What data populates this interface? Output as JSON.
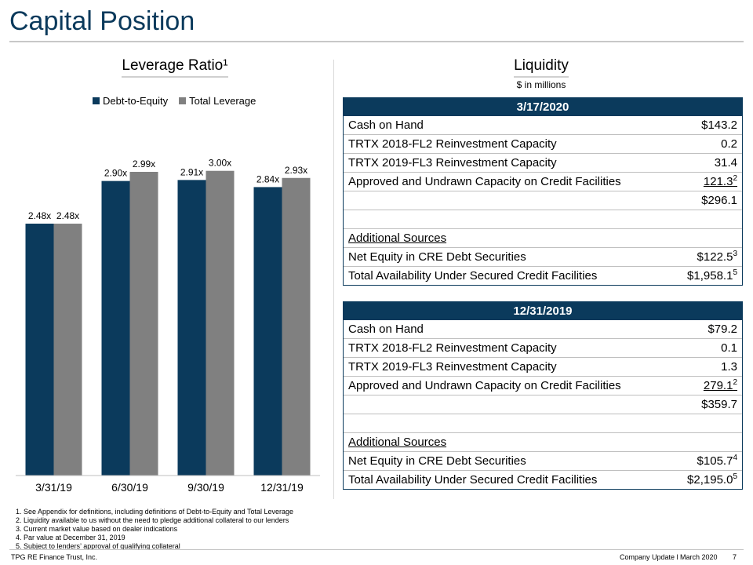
{
  "page": {
    "title": "Capital Position",
    "leverage_title": "Leverage Ratio¹",
    "liquidity_title": "Liquidity",
    "liquidity_subtitle": "$ in millions"
  },
  "chart_data": {
    "type": "bar",
    "title": "Leverage Ratio¹",
    "categories": [
      "3/31/19",
      "6/30/19",
      "9/30/19",
      "12/31/19"
    ],
    "series": [
      {
        "name": "Debt-to-Equity",
        "values": [
          2.48,
          2.9,
          2.91,
          2.84
        ],
        "labels": [
          "2.48x",
          "2.90x",
          "2.91x",
          "2.84x"
        ],
        "color": "#0b3a5c"
      },
      {
        "name": "Total Leverage",
        "values": [
          2.48,
          2.99,
          3.0,
          2.93
        ],
        "labels": [
          "2.48x",
          "2.99x",
          "3.00x",
          "2.93x"
        ],
        "color": "#808080"
      }
    ],
    "ylim": [
      0,
      3.5
    ],
    "legend": "top",
    "grid": false
  },
  "tables": [
    {
      "header": "3/17/2020",
      "rows": [
        {
          "label": "Cash on Hand",
          "value": "$143.2",
          "sup": ""
        },
        {
          "label": "TRTX 2018-FL2 Reinvestment Capacity",
          "value": "0.2",
          "sup": ""
        },
        {
          "label": "TRTX 2019-FL3 Reinvestment Capacity",
          "value": "31.4",
          "sup": ""
        },
        {
          "label": "Approved and Undrawn Capacity on Credit Facilities",
          "value": "121.3",
          "sup": "2"
        }
      ],
      "total": "$296.1",
      "additional_label": "Additional Sources",
      "additional_rows": [
        {
          "label": "Net Equity in CRE Debt Securities",
          "value": "$122.5",
          "sup": "3"
        },
        {
          "label": "Total Availability Under Secured Credit Facilities",
          "value": "$1,958.1",
          "sup": "5"
        }
      ]
    },
    {
      "header": "12/31/2019",
      "rows": [
        {
          "label": "Cash on Hand",
          "value": "$79.2",
          "sup": ""
        },
        {
          "label": "TRTX 2018-FL2 Reinvestment Capacity",
          "value": "0.1",
          "sup": ""
        },
        {
          "label": "TRTX 2019-FL3 Reinvestment Capacity",
          "value": "1.3",
          "sup": ""
        },
        {
          "label": "Approved and Undrawn Capacity on Credit Facilities",
          "value": "279.1",
          "sup": "2"
        }
      ],
      "total": "$359.7",
      "additional_label": "Additional Sources",
      "additional_rows": [
        {
          "label": "Net Equity in CRE Debt Securities",
          "value": "$105.7",
          "sup": "4"
        },
        {
          "label": "Total Availability Under Secured Credit Facilities",
          "value": "$2,195.0",
          "sup": "5"
        }
      ]
    }
  ],
  "notes": [
    "1. See Appendix for definitions, including definitions of Debt-to-Equity and Total Leverage",
    "2. Liquidity available to us without the need to pledge additional collateral to our lenders",
    "3. Current market value based on dealer indications",
    "4. Par value at December 31, 2019",
    "5. Subject to lenders’ approval of qualifying collateral"
  ],
  "footer": {
    "company": "TPG RE Finance Trust, Inc.",
    "update": "Company Update l March 2020",
    "page_number": "7"
  }
}
